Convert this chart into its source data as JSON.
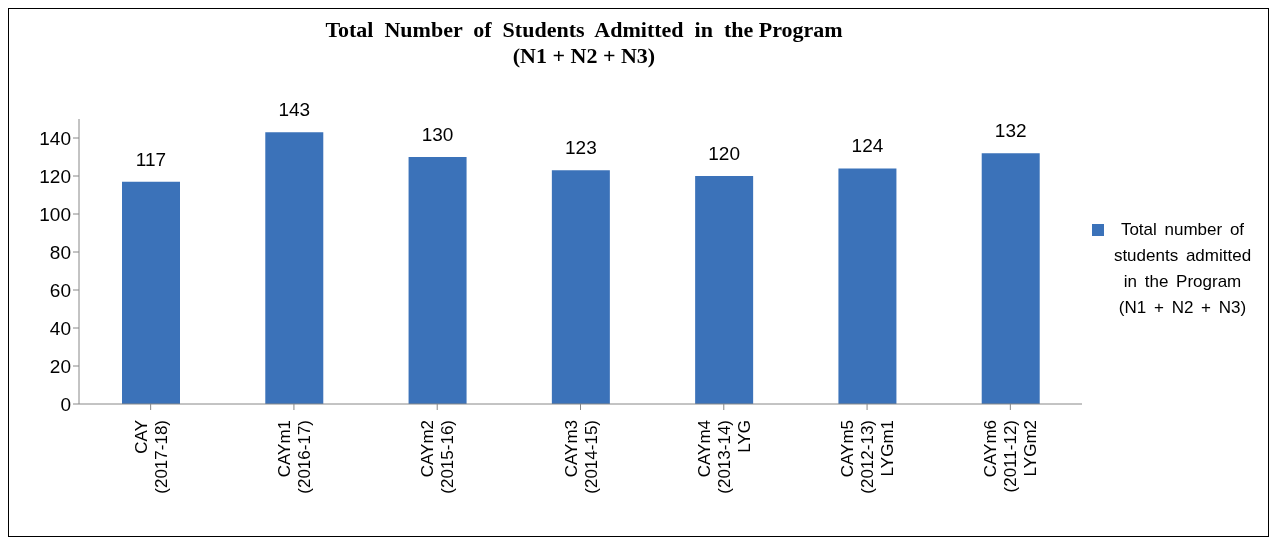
{
  "chart_data": {
    "type": "bar",
    "title": "Total  Number  of  Students  Admitted  in  the Program",
    "subtitle": "(N1 + N2 + N3)",
    "categories": [
      "CAY\n(2017-18)",
      "CAYm1\n(2016-17)",
      "CAYm2\n(2015-16)",
      "CAYm3\n(2014-15)",
      "CAYm4\n(2013-14)\nLYG",
      "CAYm5\n(2012-13)\nLYGm1",
      "CAYm6\n(2011-12)\nLYGm2"
    ],
    "series": [
      {
        "name": "Total number of students admitted in the Program (N1 + N2 + N3)",
        "color": "#3b72b9",
        "values": [
          117,
          143,
          130,
          123,
          120,
          124,
          132
        ]
      }
    ],
    "ylim": [
      0,
      150
    ],
    "yticks": [
      0,
      20,
      40,
      60,
      80,
      100,
      120,
      140
    ],
    "data_labels": true,
    "legend": "right",
    "grid": false
  }
}
